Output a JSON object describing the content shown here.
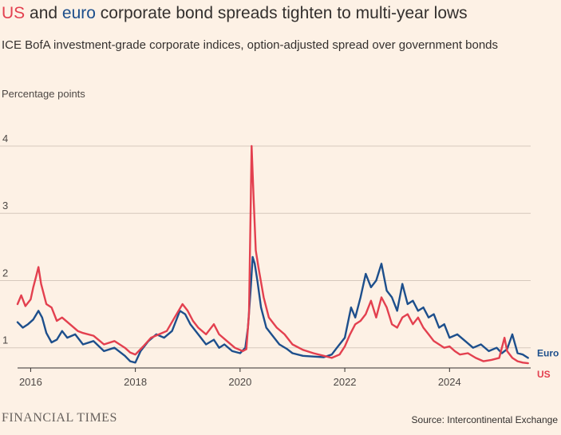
{
  "header": {
    "title_us": "US",
    "title_and": " and ",
    "title_euro": "euro",
    "title_rest": " corporate bond spreads tighten to multi-year lows",
    "subtitle": "ICE BofA investment-grade corporate indices, option-adjusted spread over government bonds",
    "unit_label": "Percentage points"
  },
  "footer": {
    "brand": "FINANCIAL TIMES",
    "source": "Source: Intercontinental Exchange"
  },
  "colors": {
    "us": "#e3404f",
    "euro": "#1d4f8c",
    "grid": "#d6c9bd",
    "axis": "#33302e",
    "background": "#fdf1e5"
  },
  "chart_data": {
    "type": "line",
    "title": "US and euro corporate bond spreads tighten to multi-year lows",
    "xlabel": "",
    "ylabel": "Percentage points",
    "xlim": [
      2015.75,
      2025.55
    ],
    "ylim": [
      0.7,
      4
    ],
    "y_ticks": [
      1,
      2,
      3,
      4
    ],
    "y_tick_labels": [
      "1",
      "2",
      "3",
      "4"
    ],
    "x_ticks": [
      2016,
      2018,
      2020,
      2022,
      2024
    ],
    "x_tick_labels": [
      "2016",
      "2018",
      "2020",
      "2022",
      "2024"
    ],
    "grid": true,
    "series": [
      {
        "name": "Euro",
        "key": "euro",
        "x": [
          2015.75,
          2015.85,
          2015.95,
          2016.05,
          2016.15,
          2016.22,
          2016.3,
          2016.4,
          2016.5,
          2016.6,
          2016.7,
          2016.85,
          2017.0,
          2017.2,
          2017.4,
          2017.6,
          2017.8,
          2017.9,
          2018.0,
          2018.1,
          2018.25,
          2018.4,
          2018.55,
          2018.7,
          2018.85,
          2018.95,
          2019.05,
          2019.2,
          2019.35,
          2019.5,
          2019.6,
          2019.7,
          2019.85,
          2020.0,
          2020.1,
          2020.15,
          2020.2,
          2020.24,
          2020.28,
          2020.33,
          2020.4,
          2020.5,
          2020.6,
          2020.75,
          2020.9,
          2021.0,
          2021.2,
          2021.4,
          2021.6,
          2021.75,
          2021.85,
          2021.9,
          2022.0,
          2022.12,
          2022.2,
          2022.3,
          2022.4,
          2022.5,
          2022.6,
          2022.7,
          2022.8,
          2022.9,
          2023.0,
          2023.1,
          2023.2,
          2023.3,
          2023.4,
          2023.5,
          2023.6,
          2023.7,
          2023.8,
          2023.9,
          2024.0,
          2024.15,
          2024.3,
          2024.45,
          2024.6,
          2024.75,
          2024.9,
          2025.0,
          2025.1,
          2025.2,
          2025.3,
          2025.4,
          2025.5
        ],
        "values": [
          1.38,
          1.3,
          1.35,
          1.42,
          1.55,
          1.45,
          1.22,
          1.08,
          1.12,
          1.25,
          1.15,
          1.2,
          1.05,
          1.1,
          0.95,
          1.0,
          0.88,
          0.8,
          0.78,
          0.95,
          1.1,
          1.2,
          1.15,
          1.25,
          1.55,
          1.5,
          1.35,
          1.2,
          1.05,
          1.12,
          1.0,
          1.05,
          0.95,
          0.92,
          1.0,
          1.3,
          1.85,
          2.35,
          2.25,
          2.0,
          1.6,
          1.3,
          1.2,
          1.05,
          0.98,
          0.92,
          0.88,
          0.87,
          0.86,
          0.9,
          1.0,
          1.05,
          1.15,
          1.6,
          1.45,
          1.75,
          2.1,
          1.9,
          2.0,
          2.25,
          1.85,
          1.75,
          1.55,
          1.95,
          1.65,
          1.7,
          1.55,
          1.6,
          1.45,
          1.5,
          1.3,
          1.35,
          1.15,
          1.2,
          1.1,
          1.0,
          1.05,
          0.95,
          1.0,
          0.92,
          0.98,
          1.2,
          0.92,
          0.9,
          0.85
        ]
      },
      {
        "name": "US",
        "key": "us",
        "x": [
          2015.75,
          2015.82,
          2015.9,
          2016.0,
          2016.05,
          2016.1,
          2016.15,
          2016.2,
          2016.3,
          2016.4,
          2016.5,
          2016.6,
          2016.75,
          2016.9,
          2017.0,
          2017.2,
          2017.4,
          2017.6,
          2017.8,
          2017.9,
          2018.0,
          2018.15,
          2018.3,
          2018.45,
          2018.6,
          2018.75,
          2018.9,
          2019.0,
          2019.1,
          2019.2,
          2019.35,
          2019.5,
          2019.6,
          2019.75,
          2019.9,
          2020.05,
          2020.12,
          2020.17,
          2020.2,
          2020.22,
          2020.26,
          2020.3,
          2020.35,
          2020.45,
          2020.55,
          2020.7,
          2020.85,
          2021.0,
          2021.2,
          2021.4,
          2021.6,
          2021.75,
          2021.9,
          2022.0,
          2022.1,
          2022.2,
          2022.3,
          2022.4,
          2022.5,
          2022.6,
          2022.7,
          2022.8,
          2022.9,
          2023.0,
          2023.1,
          2023.2,
          2023.3,
          2023.4,
          2023.5,
          2023.6,
          2023.7,
          2023.8,
          2023.9,
          2024.0,
          2024.1,
          2024.2,
          2024.35,
          2024.5,
          2024.65,
          2024.8,
          2024.95,
          2025.05,
          2025.1,
          2025.2,
          2025.3,
          2025.4,
          2025.5
        ],
        "values": [
          1.65,
          1.78,
          1.62,
          1.72,
          1.9,
          2.05,
          2.2,
          1.95,
          1.65,
          1.6,
          1.4,
          1.45,
          1.35,
          1.25,
          1.22,
          1.18,
          1.05,
          1.1,
          1.0,
          0.93,
          0.9,
          1.02,
          1.15,
          1.2,
          1.25,
          1.45,
          1.65,
          1.55,
          1.4,
          1.3,
          1.2,
          1.35,
          1.2,
          1.1,
          1.0,
          0.95,
          0.98,
          1.5,
          3.0,
          4.0,
          3.2,
          2.45,
          2.2,
          1.75,
          1.45,
          1.3,
          1.2,
          1.05,
          0.97,
          0.92,
          0.88,
          0.85,
          0.9,
          1.02,
          1.2,
          1.35,
          1.4,
          1.5,
          1.7,
          1.45,
          1.75,
          1.6,
          1.35,
          1.3,
          1.45,
          1.5,
          1.35,
          1.45,
          1.3,
          1.2,
          1.1,
          1.05,
          1.0,
          1.02,
          0.95,
          0.9,
          0.92,
          0.85,
          0.8,
          0.82,
          0.85,
          1.15,
          0.95,
          0.85,
          0.8,
          0.78,
          0.77
        ]
      }
    ]
  }
}
